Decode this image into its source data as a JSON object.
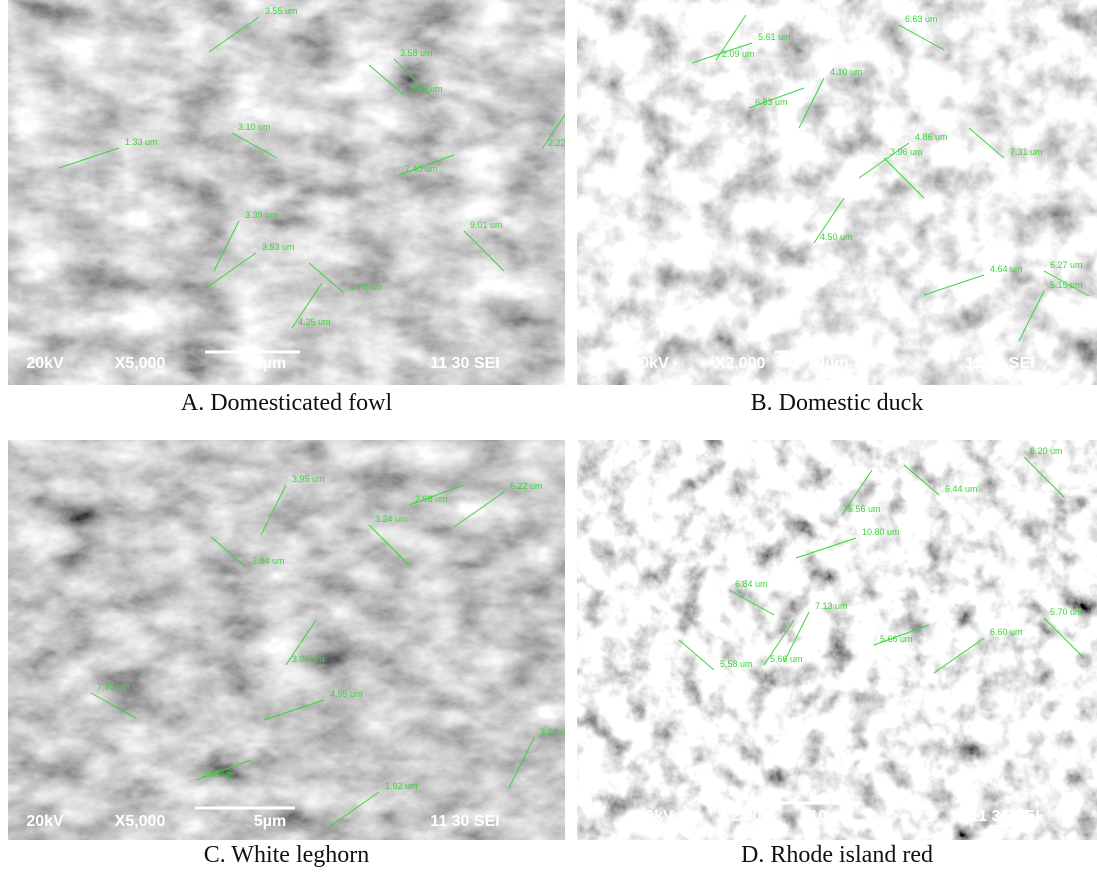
{
  "panels": [
    {
      "caption": "A. Domesticated fowl",
      "info": {
        "voltage": "20kV",
        "magnification": "X5,000",
        "scale": "5µm",
        "code": "11 30 SEI"
      },
      "measurements": [
        "3.55 um",
        "3.58 um",
        "1.65 um",
        "2.22 um",
        "1.33 um",
        "3.10 um",
        "3.39 um",
        "7.40 um",
        "3.53 um",
        "9.01 um",
        "4.75 um",
        "4.25 um"
      ]
    },
    {
      "caption": "B. Domestic duck",
      "info": {
        "voltage": "20kV",
        "magnification": "X2,000",
        "scale": "10µm",
        "code": "11 30 SEI"
      },
      "measurements": [
        "2.09 um",
        "5.61 um",
        "6.63 um",
        "4.10 um",
        "6.83 um",
        "4.86 um",
        "3.96 um",
        "7.31 um",
        "4.50 um",
        "4.64 um",
        "6.27 um",
        "5.15 um"
      ]
    },
    {
      "caption": "C. White leghorn",
      "info": {
        "voltage": "20kV",
        "magnification": "X5,000",
        "scale": "5µm",
        "code": "11 30 SEI"
      },
      "measurements": [
        "3.95 um",
        "2.68 um",
        "6.22 um",
        "3.24 um",
        "3.84 um",
        "3.05 um",
        "4.95 um",
        "7.70 um",
        "3.64 um",
        "2.50 um",
        "1.92 um"
      ]
    },
    {
      "caption": "D. Rhode island red",
      "info": {
        "voltage": "20kV",
        "magnification": "X2,000",
        "scale": "10µm",
        "code": "11 30 SEI"
      },
      "measurements": [
        "6.20 um",
        "6.44 um",
        "5.56 um",
        "10.80 um",
        "6.84 um",
        "7.13 um",
        "5.66 um",
        "6.60 um",
        "5.70 um",
        "5.58 um",
        "5.66 um"
      ]
    }
  ]
}
